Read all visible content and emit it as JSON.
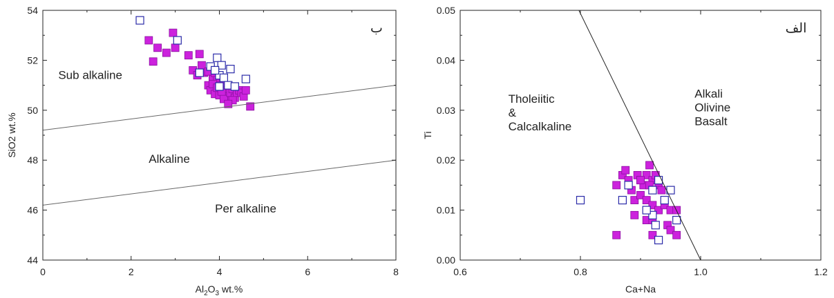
{
  "chart_data": [
    {
      "type": "scatter",
      "panel_label": "ب",
      "xlabel": "Al2O3 wt.%",
      "xlabel_main": "Al",
      "xlabel_sub1": "2",
      "xlabel_mid": "O",
      "xlabel_sub2": "3",
      "xlabel_tail": " wt.%",
      "ylabel": "SiO2 wt.%",
      "xlim": [
        0,
        8
      ],
      "ylim": [
        44,
        54
      ],
      "xticks": [
        "0",
        "2",
        "4",
        "6",
        "8"
      ],
      "yticks": [
        "44",
        "46",
        "48",
        "50",
        "52",
        "54"
      ],
      "boundary_lines": [
        {
          "x": [
            0,
            8
          ],
          "y": [
            49.2,
            51.0
          ]
        },
        {
          "x": [
            0,
            8
          ],
          "y": [
            46.2,
            48.0
          ]
        }
      ],
      "regions": [
        {
          "text": "Sub alkaline",
          "x": 0.35,
          "y": 51.25
        },
        {
          "text": "Alkaline",
          "x": 2.4,
          "y": 47.9
        },
        {
          "text": "Per alkaline",
          "x": 3.9,
          "y": 45.9
        }
      ],
      "series": [
        {
          "marker": "filled-square",
          "color": "#cc22dd",
          "edge": "#8a10a0",
          "points": [
            [
              2.4,
              52.8
            ],
            [
              2.6,
              52.5
            ],
            [
              2.8,
              52.3
            ],
            [
              3.0,
              52.5
            ],
            [
              2.95,
              53.1
            ],
            [
              2.5,
              51.95
            ],
            [
              3.3,
              52.2
            ],
            [
              3.55,
              52.25
            ],
            [
              3.6,
              51.8
            ],
            [
              3.4,
              51.6
            ],
            [
              3.5,
              51.4
            ],
            [
              3.65,
              51.5
            ],
            [
              3.75,
              51.55
            ],
            [
              3.85,
              51.25
            ],
            [
              3.75,
              51.0
            ],
            [
              3.9,
              51.5
            ],
            [
              3.95,
              51.2
            ],
            [
              4.0,
              51.0
            ],
            [
              3.8,
              50.8
            ],
            [
              3.9,
              50.65
            ],
            [
              4.0,
              50.6
            ],
            [
              4.05,
              50.85
            ],
            [
              4.1,
              51.1
            ],
            [
              4.15,
              50.8
            ],
            [
              4.2,
              50.55
            ],
            [
              4.1,
              50.45
            ],
            [
              4.25,
              50.7
            ],
            [
              4.3,
              50.85
            ],
            [
              4.35,
              50.5
            ],
            [
              4.4,
              50.7
            ],
            [
              4.45,
              50.8
            ],
            [
              4.5,
              50.7
            ],
            [
              4.55,
              50.55
            ],
            [
              4.6,
              50.8
            ],
            [
              4.3,
              50.4
            ],
            [
              4.2,
              50.25
            ],
            [
              4.7,
              50.15
            ],
            [
              3.85,
              51.05
            ],
            [
              3.95,
              50.9
            ],
            [
              4.05,
              50.75
            ]
          ]
        },
        {
          "marker": "open-square",
          "color": "#2a2aa8",
          "points": [
            [
              2.2,
              53.6
            ],
            [
              3.05,
              52.8
            ],
            [
              3.95,
              52.1
            ],
            [
              4.05,
              51.8
            ],
            [
              4.25,
              51.65
            ],
            [
              4.6,
              51.25
            ],
            [
              3.55,
              51.5
            ],
            [
              3.8,
              51.75
            ],
            [
              4.0,
              51.4
            ],
            [
              4.1,
              51.3
            ],
            [
              4.2,
              51.0
            ],
            [
              4.35,
              50.95
            ],
            [
              3.9,
              51.6
            ],
            [
              4.0,
              50.95
            ]
          ]
        }
      ]
    },
    {
      "type": "scatter",
      "panel_label": "الف",
      "xlabel": "Ca+Na",
      "ylabel": "Ti",
      "xlim": [
        0.6,
        1.2
      ],
      "ylim": [
        0.0,
        0.05
      ],
      "xticks": [
        "0.6",
        "0.8",
        "1.0",
        "1.2"
      ],
      "yticks": [
        "0.00",
        "0.01",
        "0.02",
        "0.03",
        "0.04",
        "0.05"
      ],
      "boundary_lines": [
        {
          "x": [
            0.7975,
            1.0
          ],
          "y": [
            0.05,
            0.0
          ]
        }
      ],
      "regions": [
        {
          "lines": [
            "Tholeiitic",
            "&",
            "Calcalkaline"
          ],
          "x": 0.68,
          "y": 0.0315
        },
        {
          "lines": [
            "Alkali",
            "Olivine",
            "Basalt"
          ],
          "x": 0.99,
          "y": 0.0325
        }
      ],
      "series": [
        {
          "marker": "filled-square",
          "color": "#cc22dd",
          "edge": "#8a10a0",
          "points": [
            [
              0.86,
              0.015
            ],
            [
              0.87,
              0.017
            ],
            [
              0.875,
              0.018
            ],
            [
              0.88,
              0.016
            ],
            [
              0.885,
              0.014
            ],
            [
              0.89,
              0.012
            ],
            [
              0.895,
              0.017
            ],
            [
              0.9,
              0.016
            ],
            [
              0.905,
              0.015
            ],
            [
              0.91,
              0.017
            ],
            [
              0.915,
              0.019
            ],
            [
              0.92,
              0.016
            ],
            [
              0.925,
              0.017
            ],
            [
              0.93,
              0.015
            ],
            [
              0.935,
              0.014
            ],
            [
              0.9,
              0.013
            ],
            [
              0.91,
              0.012
            ],
            [
              0.92,
              0.011
            ],
            [
              0.93,
              0.01
            ],
            [
              0.94,
              0.011
            ],
            [
              0.95,
              0.01
            ],
            [
              0.96,
              0.01
            ],
            [
              0.91,
              0.008
            ],
            [
              0.92,
              0.008
            ],
            [
              0.945,
              0.007
            ],
            [
              0.95,
              0.006
            ],
            [
              0.96,
              0.005
            ],
            [
              0.92,
              0.005
            ],
            [
              0.86,
              0.005
            ],
            [
              0.89,
              0.009
            ],
            [
              0.9,
              0.016
            ],
            [
              0.915,
              0.015
            ]
          ]
        },
        {
          "marker": "open-square",
          "color": "#2a2aa8",
          "points": [
            [
              0.8,
              0.012
            ],
            [
              0.87,
              0.012
            ],
            [
              0.93,
              0.004
            ],
            [
              0.96,
              0.008
            ],
            [
              0.95,
              0.014
            ],
            [
              0.92,
              0.014
            ],
            [
              0.94,
              0.012
            ],
            [
              0.92,
              0.009
            ],
            [
              0.91,
              0.01
            ],
            [
              0.93,
              0.016
            ],
            [
              0.925,
              0.007
            ],
            [
              0.88,
              0.015
            ]
          ]
        }
      ]
    }
  ]
}
